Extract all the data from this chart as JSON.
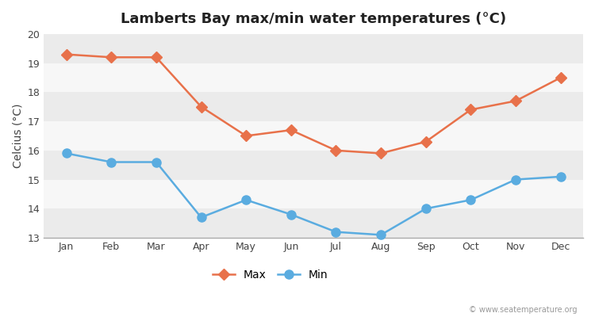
{
  "title": "Lamberts Bay max/min water temperatures (°C)",
  "ylabel": "Celcius (°C)",
  "months": [
    "Jan",
    "Feb",
    "Mar",
    "Apr",
    "May",
    "Jun",
    "Jul",
    "Aug",
    "Sep",
    "Oct",
    "Nov",
    "Dec"
  ],
  "max_temps": [
    19.3,
    19.2,
    19.2,
    17.5,
    16.5,
    16.7,
    16.0,
    15.9,
    16.3,
    17.4,
    17.7,
    18.5
  ],
  "min_temps": [
    15.9,
    15.6,
    15.6,
    13.7,
    14.3,
    13.8,
    13.2,
    13.1,
    14.0,
    14.3,
    15.0,
    15.1
  ],
  "max_color": "#e8714a",
  "min_color": "#5aace0",
  "figure_bg": "#ffffff",
  "plot_bg_light": "#f0f0f0",
  "plot_bg_dark": "#e0e0e0",
  "stripe_color_a": "#ebebeb",
  "stripe_color_b": "#f7f7f7",
  "ylim": [
    13,
    20
  ],
  "yticks": [
    13,
    14,
    15,
    16,
    17,
    18,
    19,
    20
  ],
  "watermark": "© www.seatemperature.org",
  "legend_max": "Max",
  "legend_min": "Min",
  "title_fontsize": 13,
  "label_fontsize": 10,
  "tick_fontsize": 9,
  "max_marker": "D",
  "min_marker": "o",
  "linewidth": 1.8,
  "max_markersize": 7,
  "min_markersize": 8
}
